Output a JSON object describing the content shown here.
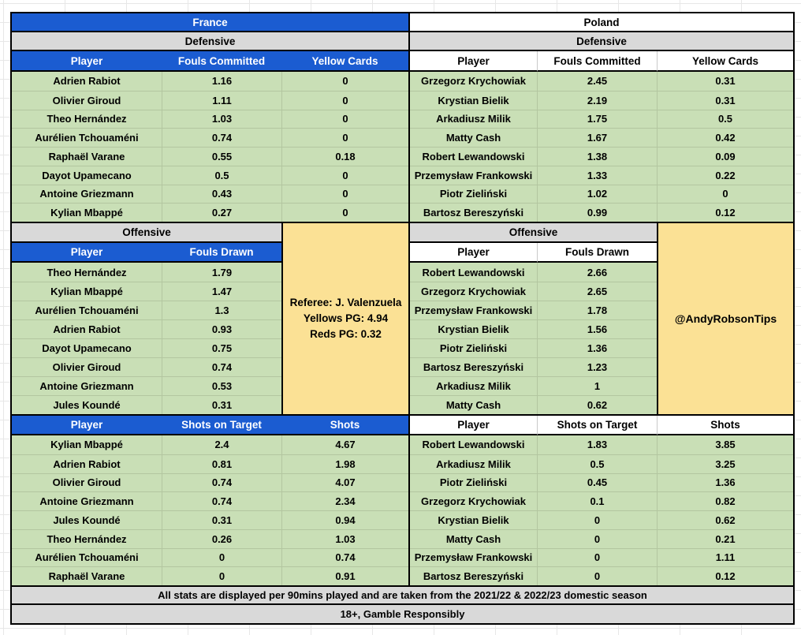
{
  "teams": {
    "france": {
      "name": "France",
      "defensive_label": "Defensive",
      "offensive_label": "Offensive",
      "defensive": {
        "headers": [
          "Player",
          "Fouls Committed",
          "Yellow Cards"
        ],
        "rows": [
          [
            "Adrien Rabiot",
            "1.16",
            "0"
          ],
          [
            "Olivier Giroud",
            "1.11",
            "0"
          ],
          [
            "Theo Hernández",
            "1.03",
            "0"
          ],
          [
            "Aurélien Tchouaméni",
            "0.74",
            "0"
          ],
          [
            "Raphaël Varane",
            "0.55",
            "0.18"
          ],
          [
            "Dayot Upamecano",
            "0.5",
            "0"
          ],
          [
            "Antoine Griezmann",
            "0.43",
            "0"
          ],
          [
            "Kylian Mbappé",
            "0.27",
            "0"
          ]
        ]
      },
      "offensive": {
        "headers": [
          "Player",
          "Fouls Drawn"
        ],
        "rows": [
          [
            "Theo Hernández",
            "1.79"
          ],
          [
            "Kylian Mbappé",
            "1.47"
          ],
          [
            "Aurélien Tchouaméni",
            "1.3"
          ],
          [
            "Adrien Rabiot",
            "0.93"
          ],
          [
            "Dayot Upamecano",
            "0.75"
          ],
          [
            "Olivier Giroud",
            "0.74"
          ],
          [
            "Antoine Griezmann",
            "0.53"
          ],
          [
            "Jules Koundé",
            "0.31"
          ]
        ]
      },
      "shots": {
        "headers": [
          "Player",
          "Shots on Target",
          "Shots"
        ],
        "rows": [
          [
            "Kylian Mbappé",
            "2.4",
            "4.67"
          ],
          [
            "Adrien Rabiot",
            "0.81",
            "1.98"
          ],
          [
            "Olivier Giroud",
            "0.74",
            "4.07"
          ],
          [
            "Antoine Griezmann",
            "0.74",
            "2.34"
          ],
          [
            "Jules Koundé",
            "0.31",
            "0.94"
          ],
          [
            "Theo Hernández",
            "0.26",
            "1.03"
          ],
          [
            "Aurélien Tchouaméni",
            "0",
            "0.74"
          ],
          [
            "Raphaël Varane",
            "0",
            "0.91"
          ]
        ]
      }
    },
    "poland": {
      "name": "Poland",
      "defensive_label": "Defensive",
      "offensive_label": "Offensive",
      "defensive": {
        "headers": [
          "Player",
          "Fouls Committed",
          "Yellow Cards"
        ],
        "rows": [
          [
            "Grzegorz Krychowiak",
            "2.45",
            "0.31"
          ],
          [
            "Krystian Bielik",
            "2.19",
            "0.31"
          ],
          [
            "Arkadiusz Milik",
            "1.75",
            "0.5"
          ],
          [
            "Matty Cash",
            "1.67",
            "0.42"
          ],
          [
            "Robert Lewandowski",
            "1.38",
            "0.09"
          ],
          [
            "Przemysław Frankowski",
            "1.33",
            "0.22"
          ],
          [
            "Piotr Zieliński",
            "1.02",
            "0"
          ],
          [
            "Bartosz Bereszyński",
            "0.99",
            "0.12"
          ]
        ]
      },
      "offensive": {
        "headers": [
          "Player",
          "Fouls Drawn"
        ],
        "rows": [
          [
            "Robert Lewandowski",
            "2.66"
          ],
          [
            "Grzegorz Krychowiak",
            "2.65"
          ],
          [
            "Przemysław Frankowski",
            "1.78"
          ],
          [
            "Krystian Bielik",
            "1.56"
          ],
          [
            "Piotr Zieliński",
            "1.36"
          ],
          [
            "Bartosz Bereszyński",
            "1.23"
          ],
          [
            "Arkadiusz Milik",
            "1"
          ],
          [
            "Matty Cash",
            "0.62"
          ]
        ]
      },
      "shots": {
        "headers": [
          "Player",
          "Shots on Target",
          "Shots"
        ],
        "rows": [
          [
            "Robert Lewandowski",
            "1.83",
            "3.85"
          ],
          [
            "Arkadiusz Milik",
            "0.5",
            "3.25"
          ],
          [
            "Piotr Zieliński",
            "0.45",
            "1.36"
          ],
          [
            "Grzegorz Krychowiak",
            "0.1",
            "0.82"
          ],
          [
            "Krystian Bielik",
            "0",
            "0.62"
          ],
          [
            "Matty Cash",
            "0",
            "0.21"
          ],
          [
            "Przemysław Frankowski",
            "0",
            "1.11"
          ],
          [
            "Bartosz Bereszyński",
            "0",
            "0.12"
          ]
        ]
      }
    }
  },
  "referee_box": {
    "line1": "Referee: J. Valenzuela",
    "line2": "Yellows PG: 4.94",
    "line3": "Reds PG: 0.32"
  },
  "handle_box": {
    "text": "@AndyRobsonTips"
  },
  "footers": {
    "stats_note": "All stats are displayed per 90mins played and are taken from the 2021/22 & 2022/23 domestic season",
    "responsibility": "18+, Gamble Responsibly"
  },
  "colors": {
    "header_blue": "#1b5cd1",
    "band_gray": "#d9d9d9",
    "cell_green": "#c9dfb6",
    "note_yellow": "#fbe195",
    "border_black": "#000000"
  }
}
